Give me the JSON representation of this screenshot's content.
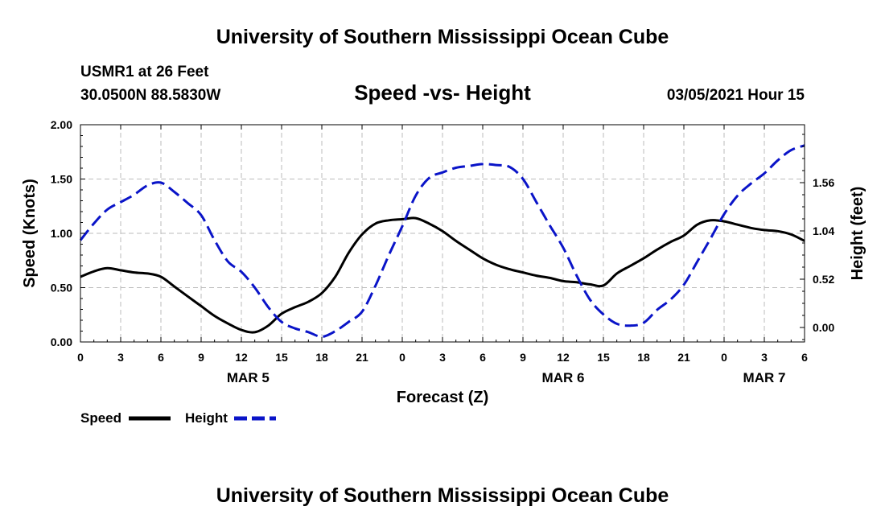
{
  "header": {
    "title": "University of Southern Mississippi Ocean Cube",
    "station": "USMR1 at 26 Feet",
    "coords": "30.0500N 88.5830W",
    "subtitle": "Speed -vs- Height",
    "datetime": "03/05/2021 Hour 15"
  },
  "footer": {
    "title": "University of Southern Mississippi Ocean Cube"
  },
  "legend": {
    "speed_label": "Speed",
    "height_label": "Height"
  },
  "colors": {
    "speed": "#000000",
    "height": "#0a14c8",
    "grid": "#bbbbbb"
  },
  "chart_data": {
    "type": "line",
    "title": "Speed -vs- Height",
    "xlabel": "Forecast (Z)",
    "ylabel": "Speed (Knots)",
    "y2label": "Height (feet)",
    "x_hours_range": [
      0,
      54
    ],
    "x_tick_hours": [
      0,
      3,
      6,
      9,
      12,
      15,
      18,
      21,
      24,
      27,
      30,
      33,
      36,
      39,
      42,
      45,
      48,
      51,
      54
    ],
    "x_tick_labels": [
      "0",
      "3",
      "6",
      "9",
      "12",
      "15",
      "18",
      "21",
      "0",
      "3",
      "6",
      "9",
      "12",
      "15",
      "18",
      "21",
      "0",
      "3",
      "6"
    ],
    "day_labels": [
      {
        "hour": 12.5,
        "label": "MAR 5"
      },
      {
        "hour": 36.0,
        "label": "MAR 6"
      },
      {
        "hour": 51.0,
        "label": "MAR 7"
      }
    ],
    "ylim": [
      0,
      2
    ],
    "y_ticks": [
      0,
      0.5,
      1.0,
      1.5,
      2.0
    ],
    "y_tick_labels": [
      "0.00",
      "0.50",
      "1.00",
      "1.50",
      "2.00"
    ],
    "y2lim": [
      -0.156,
      2.184
    ],
    "y2_ticks": [
      0,
      0.52,
      1.04,
      1.56
    ],
    "y2_tick_labels": [
      "0.00",
      "0.52",
      "1.04",
      "1.56"
    ],
    "grid": true,
    "series": [
      {
        "name": "Speed",
        "axis": "left",
        "style": "solid",
        "x": [
          0,
          1,
          2,
          3,
          4,
          5,
          6,
          7,
          8,
          9,
          10,
          11,
          12,
          13,
          14,
          15,
          16,
          17,
          18,
          19,
          20,
          21,
          22,
          23,
          24,
          25,
          26,
          27,
          28,
          29,
          30,
          31,
          32,
          33,
          34,
          35,
          36,
          37,
          38,
          39,
          40,
          41,
          42,
          43,
          44,
          45,
          46,
          47,
          48,
          49,
          50,
          51,
          52,
          53,
          54
        ],
        "values": [
          0.6,
          0.65,
          0.68,
          0.66,
          0.64,
          0.63,
          0.6,
          0.51,
          0.42,
          0.33,
          0.24,
          0.17,
          0.11,
          0.09,
          0.15,
          0.26,
          0.32,
          0.37,
          0.45,
          0.6,
          0.82,
          0.99,
          1.09,
          1.12,
          1.13,
          1.14,
          1.09,
          1.02,
          0.93,
          0.85,
          0.77,
          0.71,
          0.67,
          0.64,
          0.61,
          0.59,
          0.56,
          0.55,
          0.53,
          0.52,
          0.63,
          0.7,
          0.77,
          0.85,
          0.92,
          0.98,
          1.08,
          1.12,
          1.11,
          1.08,
          1.05,
          1.03,
          1.02,
          0.99,
          0.93
        ]
      },
      {
        "name": "Height",
        "axis": "right",
        "style": "dashed",
        "x": [
          0,
          1,
          2,
          3,
          4,
          5,
          6,
          7,
          8,
          9,
          10,
          11,
          12,
          13,
          14,
          15,
          16,
          17,
          18,
          19,
          20,
          21,
          22,
          23,
          24,
          25,
          26,
          27,
          28,
          29,
          30,
          31,
          32,
          33,
          34,
          35,
          36,
          37,
          38,
          39,
          40,
          41,
          42,
          43,
          44,
          45,
          46,
          47,
          48,
          49,
          50,
          51,
          52,
          53,
          54
        ],
        "values": [
          0.94,
          1.12,
          1.27,
          1.35,
          1.43,
          1.53,
          1.56,
          1.46,
          1.34,
          1.21,
          0.94,
          0.71,
          0.6,
          0.43,
          0.22,
          0.06,
          -0.01,
          -0.05,
          -0.1,
          -0.04,
          0.06,
          0.17,
          0.45,
          0.78,
          1.09,
          1.42,
          1.61,
          1.67,
          1.72,
          1.74,
          1.76,
          1.75,
          1.73,
          1.6,
          1.35,
          1.1,
          0.86,
          0.56,
          0.3,
          0.14,
          0.04,
          0.02,
          0.05,
          0.19,
          0.3,
          0.46,
          0.71,
          0.96,
          1.22,
          1.42,
          1.55,
          1.66,
          1.8,
          1.91,
          1.96
        ]
      }
    ]
  }
}
